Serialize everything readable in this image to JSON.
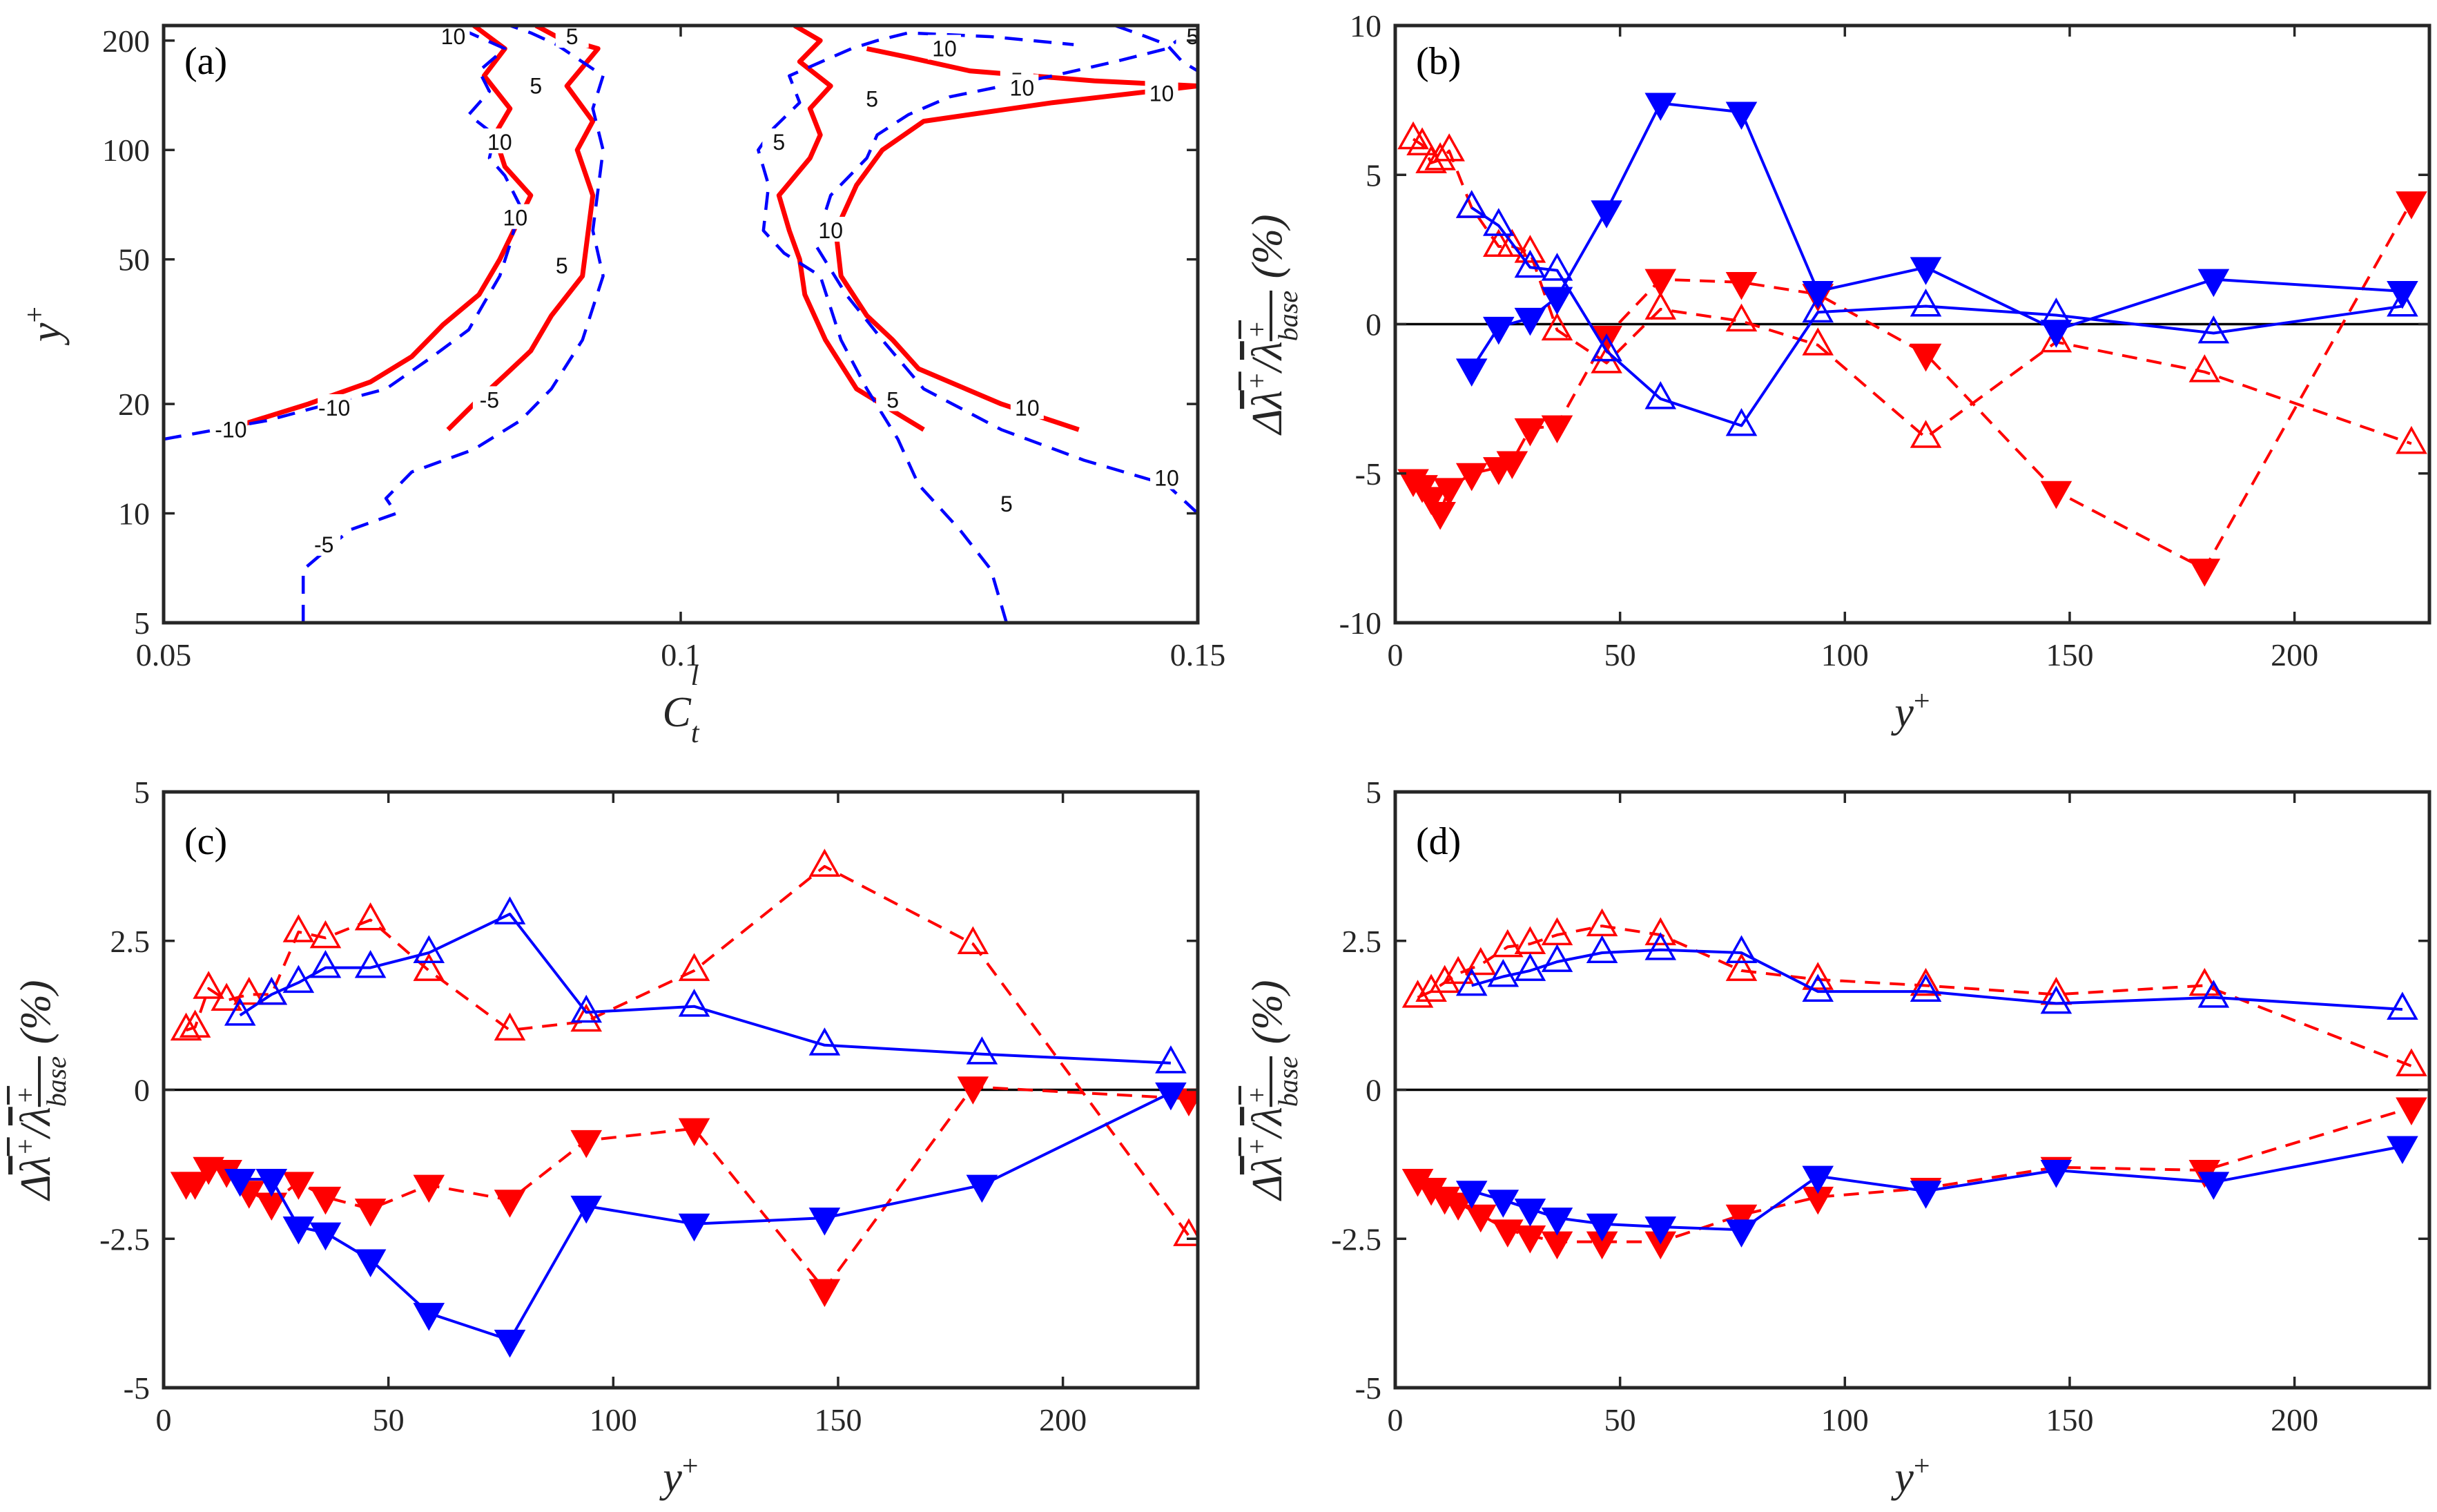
{
  "colors": {
    "red": "#ff0000",
    "blue": "#0000ff",
    "axis": "#262626"
  },
  "chart_data": [
    {
      "id": "a",
      "type": "contour",
      "label": "(a)",
      "xlabel": "C_t^l",
      "ylabel": "y^+",
      "xlim": [
        0.05,
        0.15
      ],
      "ylim": [
        5,
        220
      ],
      "yscale": "log",
      "xticks": [
        0.05,
        0.1,
        0.15
      ],
      "xtick_labels": [
        "0.05",
        "0.1",
        "0.15"
      ],
      "yticks": [
        5,
        10,
        20,
        50,
        100,
        200
      ],
      "ytick_labels": [
        "5",
        "10",
        "20",
        "50",
        "100",
        "200"
      ],
      "contours": [
        {
          "name": "red-left-outer",
          "color": "red",
          "style": "solid",
          "level": -10,
          "x": [
            0.056,
            0.064,
            0.07,
            0.074,
            0.077,
            0.0805,
            0.0825,
            0.0855,
            0.083,
            0.082,
            0.0835,
            0.081,
            0.083,
            0.08
          ],
          "y": [
            17,
            20,
            23,
            27,
            33,
            40,
            50,
            75,
            90,
            110,
            130,
            160,
            190,
            220
          ]
        },
        {
          "name": "red-left-inner",
          "color": "red",
          "style": "solid",
          "level": -5,
          "x": [
            0.0775,
            0.08,
            0.083,
            0.0855,
            0.0875,
            0.0905,
            0.0915,
            0.09,
            0.0915,
            0.089,
            0.092,
            0.088,
            0.086
          ],
          "y": [
            17,
            20,
            24,
            28,
            35,
            45,
            75,
            100,
            120,
            150,
            190,
            205,
            220
          ]
        },
        {
          "name": "red-right-inner",
          "color": "red",
          "style": "solid",
          "level": 5,
          "x": [
            0.1235,
            0.117,
            0.114,
            0.112,
            0.1115,
            0.1105,
            0.1095,
            0.1125,
            0.1135,
            0.1125,
            0.1145,
            0.1115,
            0.1135,
            0.111
          ],
          "y": [
            17,
            22,
            30,
            40,
            50,
            60,
            75,
            95,
            110,
            130,
            150,
            175,
            200,
            220
          ]
        },
        {
          "name": "red-right-outer",
          "color": "red",
          "style": "solid",
          "level": 10,
          "x": [
            0.1385,
            0.131,
            0.123,
            0.1205,
            0.118,
            0.1155,
            0.115,
            0.117,
            0.1195,
            0.1235,
            0.136,
            0.15
          ],
          "y": [
            17,
            20,
            25,
            30,
            35,
            45,
            60,
            80,
            100,
            120,
            135,
            150
          ]
        },
        {
          "name": "red-top-right",
          "color": "red",
          "style": "solid",
          "level": 10,
          "x": [
            0.15,
            0.14,
            0.128,
            0.122,
            0.118
          ],
          "y": [
            150,
            155,
            165,
            180,
            190
          ]
        },
        {
          "name": "blue-left-outer",
          "color": "blue",
          "style": "dashed",
          "level": -10,
          "x": [
            0.05,
            0.06,
            0.066,
            0.0715,
            0.076,
            0.0795,
            0.081,
            0.0825,
            0.0835,
            0.0845,
            0.083,
            0.0815,
            0.082,
            0.0795,
            0.0815,
            0.0805,
            0.083,
            0.078
          ],
          "y": [
            16,
            18,
            20,
            22,
            27,
            32,
            38,
            45,
            55,
            70,
            85,
            95,
            110,
            125,
            145,
            165,
            190,
            220
          ]
        },
        {
          "name": "blue-left-inner",
          "color": "blue",
          "style": "dashed",
          "level": -5,
          "x": [
            0.0635,
            0.0635,
            0.068,
            0.0725,
            0.0715,
            0.074,
            0.08,
            0.0845,
            0.0875,
            0.0905,
            0.0925,
            0.0915,
            0.0925,
            0.0915,
            0.0925,
            0.088,
            0.0855,
            0.0835
          ],
          "y": [
            5,
            7,
            9,
            10,
            11,
            13,
            15,
            18,
            22,
            30,
            45,
            60,
            100,
            130,
            160,
            195,
            210,
            220
          ]
        },
        {
          "name": "blue-right-inner",
          "color": "blue",
          "style": "dashed",
          "level": 5,
          "x": [
            0.1315,
            0.13,
            0.127,
            0.123,
            0.121,
            0.118,
            0.1155,
            0.1135,
            0.11,
            0.108,
            0.1085,
            0.1075,
            0.109,
            0.1115,
            0.1105,
            0.1165,
            0.119,
            0.122,
            0.13,
            0.138
          ],
          "y": [
            5,
            7,
            9,
            12,
            16,
            22,
            30,
            45,
            52,
            60,
            80,
            100,
            115,
            135,
            160,
            190,
            200,
            210,
            205,
            195
          ]
        },
        {
          "name": "blue-right-outer",
          "color": "blue",
          "style": "dashed",
          "level": 10,
          "x": [
            0.15,
            0.147,
            0.139,
            0.131,
            0.1235,
            0.1195,
            0.116,
            0.113,
            0.1145,
            0.118,
            0.119,
            0.122,
            0.126,
            0.136,
            0.142,
            0.147,
            0.148,
            0.15
          ],
          "y": [
            10,
            12,
            14,
            17,
            22,
            30,
            40,
            55,
            75,
            95,
            110,
            125,
            140,
            160,
            175,
            190,
            200,
            210
          ]
        },
        {
          "name": "blue-top-right",
          "color": "blue",
          "style": "dashed",
          "level": 5,
          "x": [
            0.142,
            0.145,
            0.147,
            0.1485,
            0.15
          ],
          "y": [
            220,
            205,
            195,
            175,
            165
          ]
        }
      ],
      "contour_labels": [
        {
          "text": "-10",
          "x": 0.0565,
          "y": 17
        },
        {
          "text": "-10",
          "x": 0.0665,
          "y": 19.5
        },
        {
          "text": "-5",
          "x": 0.0655,
          "y": 8.2
        },
        {
          "text": "-5",
          "x": 0.0815,
          "y": 20.5
        },
        {
          "text": "10",
          "x": 0.084,
          "y": 65
        },
        {
          "text": "10",
          "x": 0.0825,
          "y": 105
        },
        {
          "text": "10",
          "x": 0.078,
          "y": 205
        },
        {
          "text": "5",
          "x": 0.0885,
          "y": 48
        },
        {
          "text": "5",
          "x": 0.086,
          "y": 150
        },
        {
          "text": "5",
          "x": 0.0895,
          "y": 205
        },
        {
          "text": "5",
          "x": 0.1095,
          "y": 105
        },
        {
          "text": "5",
          "x": 0.1185,
          "y": 138
        },
        {
          "text": "10",
          "x": 0.1145,
          "y": 60
        },
        {
          "text": "5",
          "x": 0.1205,
          "y": 20.5
        },
        {
          "text": "10",
          "x": 0.1335,
          "y": 19.5
        },
        {
          "text": "5",
          "x": 0.1315,
          "y": 10.6
        },
        {
          "text": "10",
          "x": 0.147,
          "y": 12.5
        },
        {
          "text": "5",
          "x": 0.1325,
          "y": 155
        },
        {
          "text": "10",
          "x": 0.133,
          "y": 148
        },
        {
          "text": "10",
          "x": 0.1465,
          "y": 143
        },
        {
          "text": "10",
          "x": 0.1255,
          "y": 190
        },
        {
          "text": "5",
          "x": 0.1495,
          "y": 205
        }
      ]
    },
    {
      "id": "b",
      "type": "line",
      "label": "(b)",
      "xlabel": "y^+",
      "ylabel": "Δλ̄⁺/λ̄⁺_base (%)",
      "xlim": [
        0,
        230
      ],
      "ylim": [
        -10,
        10
      ],
      "xticks": [
        0,
        50,
        100,
        150,
        200
      ],
      "xtick_labels": [
        "0",
        "50",
        "100",
        "150",
        "200"
      ],
      "yticks": [
        -10,
        -5,
        0,
        5,
        10
      ],
      "ytick_labels": [
        "-10",
        "-5",
        "0",
        "5",
        "10"
      ],
      "series": [
        {
          "name": "red-open",
          "color": "red",
          "style": "dashed",
          "marker": "triangle-up-open",
          "x": [
            4,
            6,
            8,
            10,
            12,
            17,
            23,
            26,
            30,
            36,
            47,
            59,
            77,
            94,
            118,
            147,
            180,
            226
          ],
          "y": [
            6.2,
            6.0,
            5.4,
            5.5,
            5.8,
            3.9,
            2.6,
            2.6,
            2.4,
            -0.2,
            -1.3,
            0.5,
            0.1,
            -0.7,
            -3.8,
            -0.6,
            -1.6,
            -4.0
          ]
        },
        {
          "name": "red-filled",
          "color": "red",
          "style": "dashed",
          "marker": "triangle-down-filled",
          "x": [
            4,
            6,
            8,
            10,
            12,
            17,
            23,
            26,
            30,
            36,
            47,
            59,
            77,
            94,
            118,
            147,
            180,
            226
          ],
          "y": [
            -5.2,
            -5.4,
            -5.8,
            -6.3,
            -5.5,
            -5.0,
            -4.8,
            -4.6,
            -3.5,
            -3.4,
            -0.4,
            1.5,
            1.4,
            1.0,
            -1.0,
            -5.6,
            -8.2,
            4.1
          ]
        },
        {
          "name": "blue-open",
          "color": "blue",
          "style": "solid",
          "marker": "triangle-up-open",
          "x": [
            17,
            23,
            30,
            36,
            47,
            59,
            77,
            94,
            118,
            147,
            182,
            224
          ],
          "y": [
            3.9,
            3.3,
            1.9,
            1.8,
            -0.9,
            -2.5,
            -3.4,
            0.4,
            0.6,
            0.3,
            -0.3,
            0.6
          ]
        },
        {
          "name": "blue-filled",
          "color": "blue",
          "style": "solid",
          "marker": "triangle-down-filled",
          "x": [
            17,
            23,
            30,
            36,
            47,
            59,
            77,
            94,
            118,
            147,
            182,
            224
          ],
          "y": [
            -1.5,
            -0.1,
            0.2,
            0.9,
            3.8,
            7.4,
            7.1,
            1.1,
            1.9,
            -0.2,
            1.5,
            1.1
          ]
        }
      ]
    },
    {
      "id": "c",
      "type": "line",
      "label": "(c)",
      "xlabel": "y^+",
      "ylabel": "Δλ̄⁺/λ̄⁺_base (%)",
      "xlim": [
        0,
        230
      ],
      "ylim": [
        -5,
        5
      ],
      "xticks": [
        0,
        50,
        100,
        150,
        200
      ],
      "xtick_labels": [
        "0",
        "50",
        "100",
        "150",
        "200"
      ],
      "yticks": [
        -5,
        -2.5,
        0,
        2.5,
        5
      ],
      "ytick_labels": [
        "-5",
        "-2.5",
        "0",
        "2.5",
        "5"
      ],
      "series": [
        {
          "name": "red-open",
          "color": "red",
          "style": "dashed",
          "marker": "triangle-up-open",
          "x": [
            5,
            7,
            10,
            14,
            19,
            24,
            30,
            36,
            46,
            59,
            77,
            94,
            118,
            147,
            180,
            228
          ],
          "y": [
            1.0,
            1.05,
            1.7,
            1.5,
            1.6,
            1.6,
            2.65,
            2.55,
            2.85,
            2.0,
            1.0,
            1.15,
            2.0,
            3.75,
            2.45,
            -2.45
          ]
        },
        {
          "name": "red-filled",
          "color": "red",
          "style": "dashed",
          "marker": "triangle-down-filled",
          "x": [
            5,
            7,
            10,
            14,
            19,
            24,
            30,
            36,
            46,
            59,
            77,
            94,
            118,
            147,
            180,
            228
          ],
          "y": [
            -1.55,
            -1.55,
            -1.3,
            -1.35,
            -1.7,
            -1.9,
            -1.55,
            -1.8,
            -2.0,
            -1.6,
            -1.85,
            -0.85,
            -0.65,
            -3.35,
            0.05,
            -0.15
          ]
        },
        {
          "name": "blue-open",
          "color": "blue",
          "style": "solid",
          "marker": "triangle-up-open",
          "x": [
            17,
            24,
            30,
            36,
            46,
            59,
            77,
            94,
            118,
            147,
            182,
            224
          ],
          "y": [
            1.25,
            1.6,
            1.8,
            2.05,
            2.05,
            2.3,
            2.95,
            1.3,
            1.4,
            0.75,
            0.6,
            0.45
          ]
        },
        {
          "name": "blue-filled",
          "color": "blue",
          "style": "solid",
          "marker": "triangle-down-filled",
          "x": [
            17,
            24,
            30,
            36,
            46,
            59,
            77,
            94,
            118,
            147,
            182,
            224
          ],
          "y": [
            -1.5,
            -1.5,
            -2.3,
            -2.4,
            -2.85,
            -3.75,
            -4.2,
            -1.95,
            -2.25,
            -2.15,
            -1.6,
            -0.05
          ]
        }
      ]
    },
    {
      "id": "d",
      "type": "line",
      "label": "(d)",
      "xlabel": "y^+",
      "ylabel": "Δλ̄⁺/λ̄⁺_base (%)",
      "xlim": [
        0,
        230
      ],
      "ylim": [
        -5,
        5
      ],
      "xticks": [
        0,
        50,
        100,
        150,
        200
      ],
      "xtick_labels": [
        "0",
        "50",
        "100",
        "150",
        "200"
      ],
      "yticks": [
        -5,
        -2.5,
        0,
        2.5,
        5
      ],
      "ytick_labels": [
        "-5",
        "-2.5",
        "0",
        "2.5",
        "5"
      ],
      "series": [
        {
          "name": "red-open",
          "color": "red",
          "style": "dashed",
          "marker": "triangle-up-open",
          "x": [
            5,
            8,
            11,
            14,
            19,
            25,
            30,
            36,
            46,
            59,
            77,
            94,
            118,
            147,
            180,
            226
          ],
          "y": [
            1.55,
            1.65,
            1.8,
            1.95,
            2.1,
            2.4,
            2.45,
            2.6,
            2.75,
            2.6,
            2.0,
            1.85,
            1.75,
            1.6,
            1.75,
            0.4
          ]
        },
        {
          "name": "red-filled",
          "color": "red",
          "style": "dashed",
          "marker": "triangle-down-filled",
          "x": [
            5,
            8,
            11,
            14,
            19,
            25,
            30,
            36,
            46,
            59,
            77,
            94,
            118,
            147,
            180,
            226
          ],
          "y": [
            -1.5,
            -1.65,
            -1.8,
            -1.9,
            -2.1,
            -2.35,
            -2.45,
            -2.55,
            -2.55,
            -2.55,
            -2.1,
            -1.8,
            -1.65,
            -1.3,
            -1.35,
            -0.3
          ]
        },
        {
          "name": "blue-open",
          "color": "blue",
          "style": "solid",
          "marker": "triangle-up-open",
          "x": [
            17,
            24,
            30,
            36,
            46,
            59,
            77,
            94,
            118,
            147,
            182,
            224
          ],
          "y": [
            1.75,
            1.9,
            2.0,
            2.15,
            2.3,
            2.35,
            2.3,
            1.65,
            1.65,
            1.45,
            1.55,
            1.35
          ]
        },
        {
          "name": "blue-filled",
          "color": "blue",
          "style": "solid",
          "marker": "triangle-down-filled",
          "x": [
            17,
            24,
            30,
            36,
            46,
            59,
            77,
            94,
            118,
            147,
            182,
            224
          ],
          "y": [
            -1.7,
            -1.85,
            -2.0,
            -2.15,
            -2.25,
            -2.3,
            -2.35,
            -1.45,
            -1.7,
            -1.35,
            -1.55,
            -0.95
          ]
        }
      ]
    }
  ]
}
